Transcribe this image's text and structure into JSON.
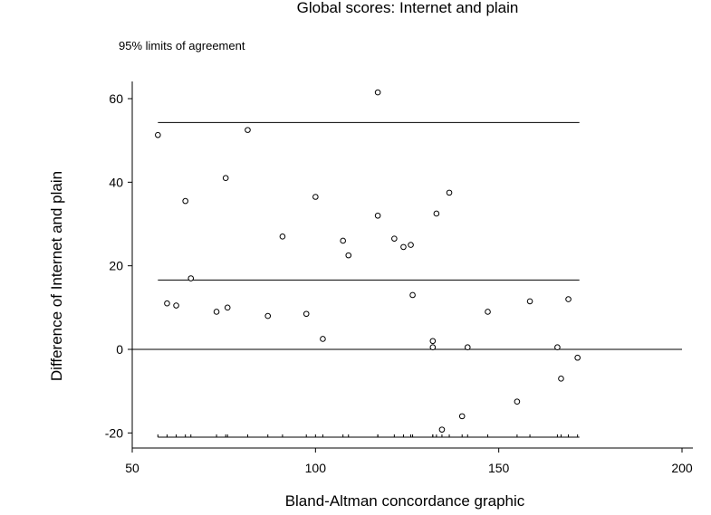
{
  "chart_data": {
    "type": "scatter",
    "title": "Global scores: Internet and plain",
    "subtitle": "95% limits of agreement",
    "xlabel": "Bland-Altman concordance graphic",
    "ylabel": "Difference of Internet and plain",
    "xlim": [
      50,
      200
    ],
    "ylim": [
      -21,
      62
    ],
    "xticks": [
      50,
      100,
      150,
      200
    ],
    "yticks": [
      -20,
      0,
      20,
      40,
      60
    ],
    "grid": false,
    "reference_lines": {
      "upper_limit": 54.3,
      "mean_difference": 16.6,
      "lower_limit": -21.0,
      "zero": 0,
      "x_range": [
        57,
        172
      ]
    },
    "points": [
      {
        "x": 57,
        "y": 51.3
      },
      {
        "x": 59.5,
        "y": 11
      },
      {
        "x": 62,
        "y": 10.5
      },
      {
        "x": 64.5,
        "y": 35.5
      },
      {
        "x": 66,
        "y": 17
      },
      {
        "x": 73,
        "y": 9
      },
      {
        "x": 75.5,
        "y": 41
      },
      {
        "x": 76,
        "y": 10
      },
      {
        "x": 81.5,
        "y": 52.5
      },
      {
        "x": 87,
        "y": 8
      },
      {
        "x": 91,
        "y": 27
      },
      {
        "x": 97.5,
        "y": 8.5
      },
      {
        "x": 100,
        "y": 36.5
      },
      {
        "x": 102,
        "y": 2.5
      },
      {
        "x": 107.5,
        "y": 26
      },
      {
        "x": 109,
        "y": 22.5
      },
      {
        "x": 117,
        "y": 61.5
      },
      {
        "x": 117,
        "y": 32
      },
      {
        "x": 121.5,
        "y": 26.5
      },
      {
        "x": 124,
        "y": 24.5
      },
      {
        "x": 126,
        "y": 25
      },
      {
        "x": 126.5,
        "y": 13
      },
      {
        "x": 132,
        "y": 2
      },
      {
        "x": 132,
        "y": 0.5
      },
      {
        "x": 133,
        "y": 32.5
      },
      {
        "x": 134.5,
        "y": -19.2
      },
      {
        "x": 136.5,
        "y": 37.5
      },
      {
        "x": 140,
        "y": -16
      },
      {
        "x": 141.5,
        "y": 0.5
      },
      {
        "x": 147,
        "y": 9
      },
      {
        "x": 155,
        "y": -12.5
      },
      {
        "x": 158.5,
        "y": 11.5
      },
      {
        "x": 166,
        "y": 0.5
      },
      {
        "x": 167,
        "y": -7
      },
      {
        "x": 169,
        "y": 12
      },
      {
        "x": 171.5,
        "y": -2
      }
    ]
  }
}
